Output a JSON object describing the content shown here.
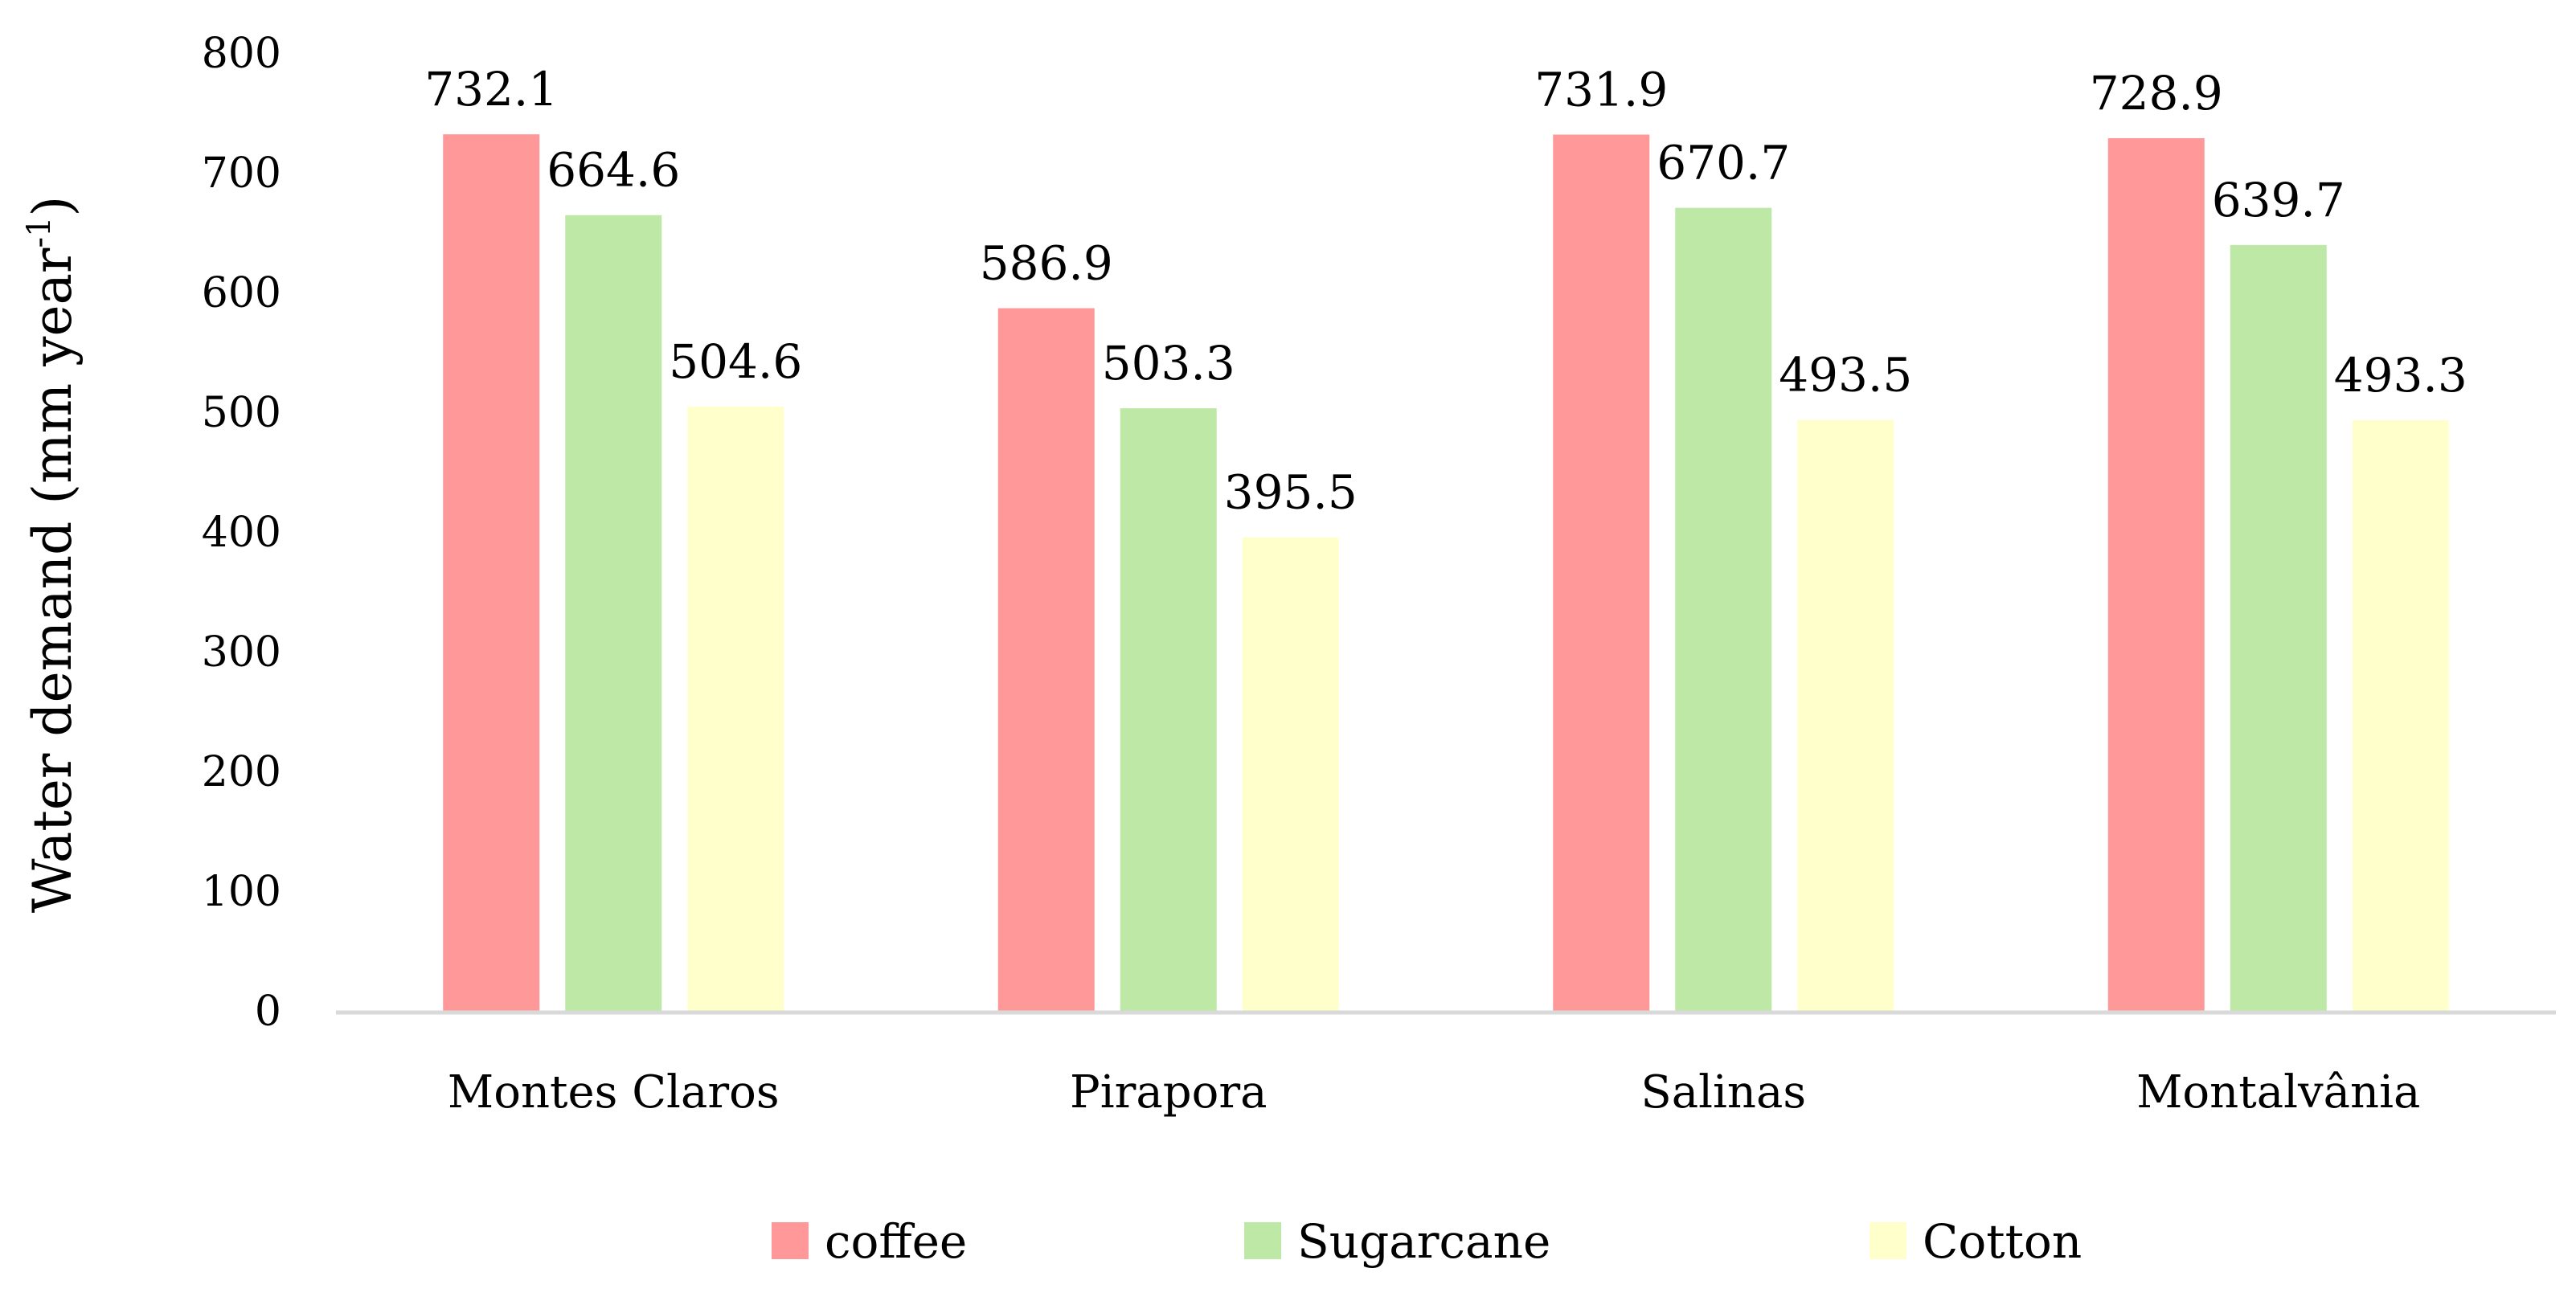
{
  "chart_data": {
    "type": "bar",
    "categories": [
      "Montes Claros",
      "Pirapora",
      "Salinas",
      "Montalvânia"
    ],
    "series": [
      {
        "name": "coffee",
        "values": [
          732.1,
          586.9,
          731.9,
          728.9
        ],
        "color": "#ff9999"
      },
      {
        "name": "Sugarcane",
        "values": [
          664.6,
          503.3,
          670.7,
          639.7
        ],
        "color": "#bde8a6"
      },
      {
        "name": "Cotton",
        "values": [
          504.6,
          395.5,
          493.5,
          493.3
        ],
        "color": "#ffffcc"
      }
    ],
    "data_labels": [
      [
        "732.1",
        "586.9",
        "731.9",
        "728.9"
      ],
      [
        "664.6",
        "503.3",
        "670.7",
        "639.7"
      ],
      [
        "504.6",
        "395.5",
        "493.5",
        "493.3"
      ]
    ],
    "ylabel_main": "Water demand (mm year",
    "ylabel_sup": "-1",
    "ylabel_close": ")",
    "ylim": [
      0,
      800
    ],
    "yticks": [
      "0",
      "100",
      "200",
      "300",
      "400",
      "500",
      "600",
      "700",
      "800"
    ],
    "grid": false,
    "legend_position": "bottom-center",
    "axis_color": "#d9d9d9"
  }
}
